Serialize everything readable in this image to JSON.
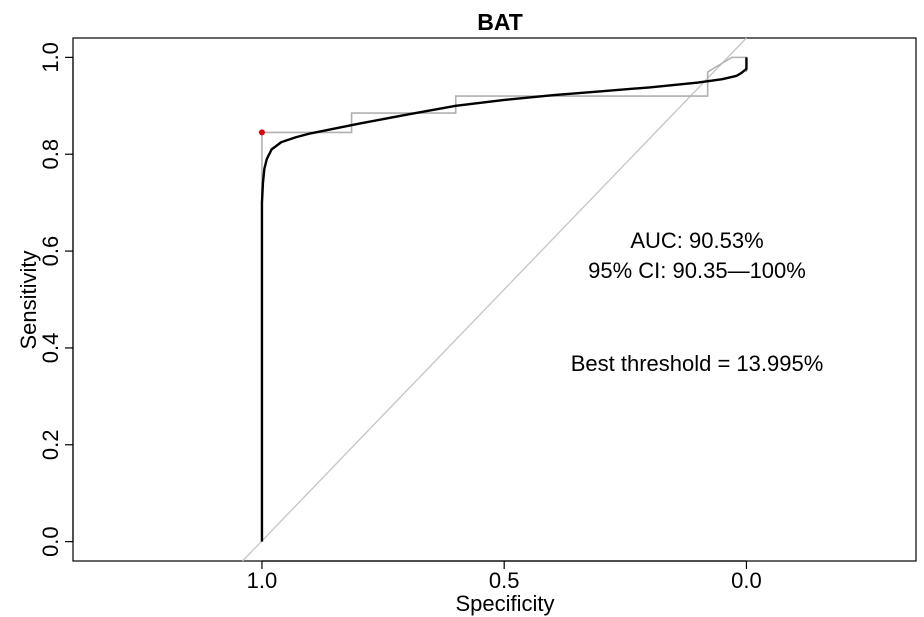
{
  "chart_data": {
    "type": "line",
    "title": "BAT",
    "xlabel": "Specificity",
    "ylabel": "Sensitivity",
    "x_reversed": true,
    "xlim": [
      1.39,
      -0.35
    ],
    "ylim": [
      -0.04,
      1.04
    ],
    "x_ticks": [
      1.0,
      0.5,
      0.0
    ],
    "x_tick_labels": [
      "1.0",
      "0.5",
      "0.0"
    ],
    "y_ticks": [
      0.0,
      0.2,
      0.4,
      0.6,
      0.8,
      1.0
    ],
    "y_tick_labels": [
      "0.0",
      "0.2",
      "0.4",
      "0.6",
      "0.8",
      "1.0"
    ],
    "grid": false,
    "colors": {
      "smooth": "#000000",
      "empirical": "#b0b0b0",
      "diagonal": "#c8c8c8",
      "best_point": "#e00000"
    },
    "series": [
      {
        "style": "smooth",
        "x": [
          1.0,
          1.0,
          0.998,
          0.995,
          0.99,
          0.98,
          0.96,
          0.93,
          0.9,
          0.85,
          0.8,
          0.7,
          0.6,
          0.5,
          0.4,
          0.3,
          0.2,
          0.1,
          0.05,
          0.02,
          0.01,
          0.0,
          0.0
        ],
        "y": [
          0.0,
          0.7,
          0.74,
          0.77,
          0.79,
          0.81,
          0.825,
          0.835,
          0.843,
          0.853,
          0.863,
          0.882,
          0.9,
          0.912,
          0.922,
          0.93,
          0.938,
          0.948,
          0.955,
          0.962,
          0.968,
          0.976,
          1.0
        ]
      },
      {
        "style": "empirical",
        "x": [
          1.0,
          1.0,
          0.815,
          0.815,
          0.6,
          0.6,
          0.08,
          0.08,
          0.03,
          0.0,
          0.0
        ],
        "y": [
          0.0,
          0.845,
          0.845,
          0.885,
          0.885,
          0.92,
          0.92,
          0.97,
          1.0,
          1.0,
          0.97
        ]
      }
    ],
    "diagonal": {
      "x": [
        1.04,
        0.0
      ],
      "y": [
        -0.04,
        1.04
      ]
    },
    "best_point": {
      "x": 1.0,
      "y": 0.845
    },
    "annotations": [
      "AUC: 90.53%",
      "95% CI: 90.35—100%",
      "Best threshold = 13.995%"
    ]
  }
}
